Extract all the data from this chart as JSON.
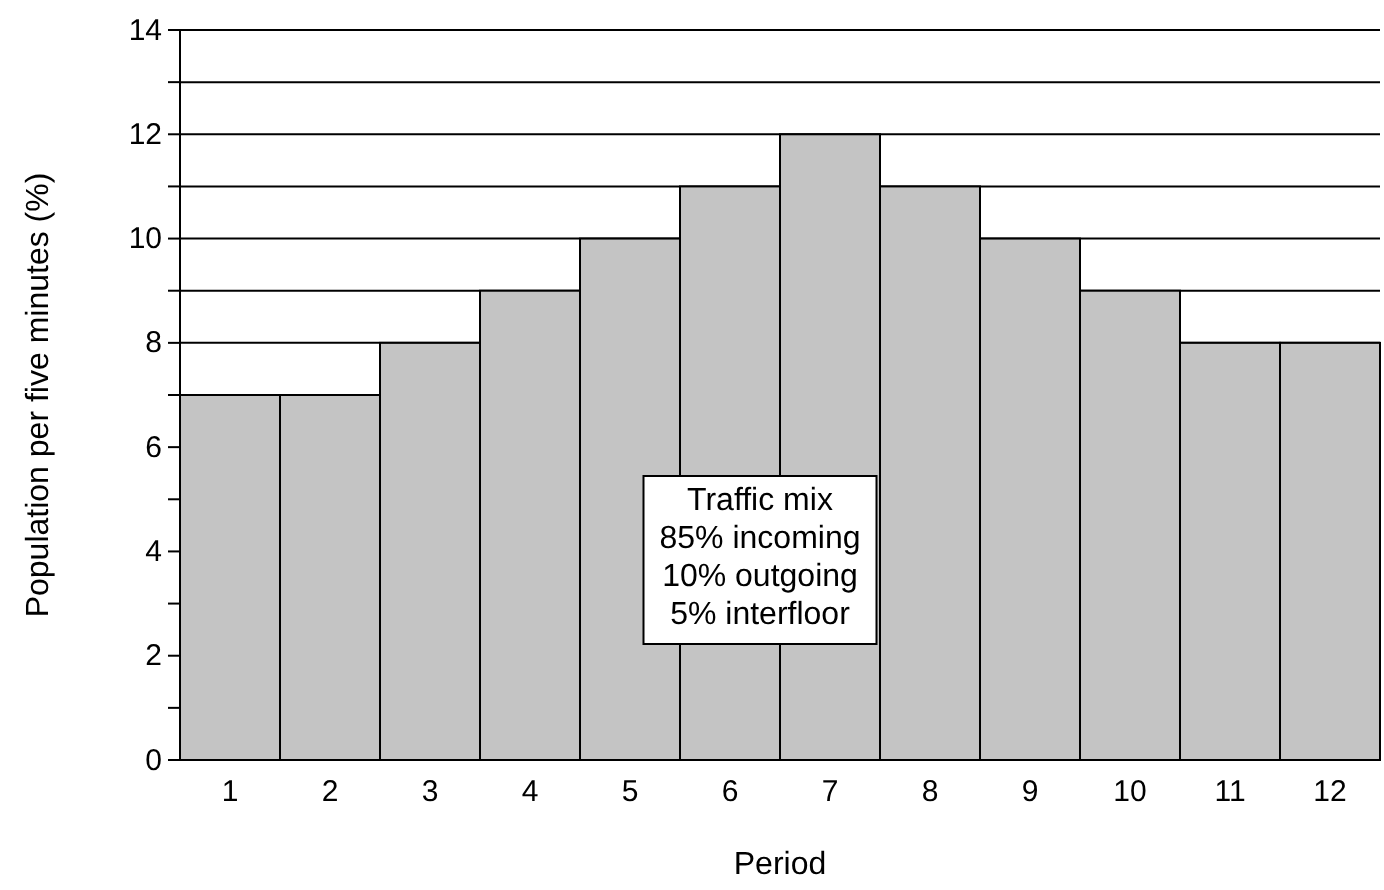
{
  "chart_data": {
    "type": "bar",
    "xlabel": "Period",
    "ylabel": "Population per five minutes (%)",
    "categories": [
      "1",
      "2",
      "3",
      "4",
      "5",
      "6",
      "7",
      "8",
      "9",
      "10",
      "11",
      "12"
    ],
    "values": [
      7,
      7,
      8,
      9,
      10,
      11,
      12,
      11,
      10,
      9,
      8,
      8
    ],
    "color": "#c4c4c4",
    "ylim": [
      0,
      14
    ],
    "yticks": [
      0,
      {
        "value": 1,
        "label": null
      },
      2,
      {
        "value": 3,
        "label": null
      },
      4,
      {
        "value": 5,
        "label": null
      },
      6,
      {
        "value": 7,
        "label": null
      },
      8,
      {
        "value": 9,
        "label": null
      },
      10,
      {
        "value": 11,
        "label": null
      },
      12,
      {
        "value": 13,
        "label": null
      },
      14
    ],
    "grid": "y",
    "annotations": [
      "Traffic mix",
      "85% incoming",
      "10% outgoing",
      "5% interfloor"
    ]
  }
}
